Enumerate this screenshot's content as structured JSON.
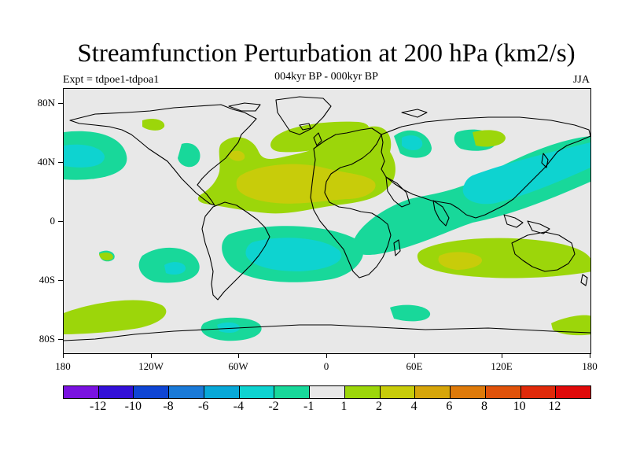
{
  "title": "Streamfunction Perturbation at 200 hPa (km2/s)",
  "subtitle": "004kyr BP - 000kyr BP",
  "experiment": "Expt = tdpoe1-tdpoa1",
  "season": "JJA",
  "y_axis_labels": [
    "80N",
    "40N",
    "0",
    "40S",
    "80S"
  ],
  "x_axis_labels": [
    "180",
    "120W",
    "60W",
    "0",
    "60E",
    "120E",
    "180"
  ],
  "colorbar": {
    "colors": [
      "#7a12e0",
      "#3310d8",
      "#0f45d4",
      "#1a7ad8",
      "#08a8d8",
      "#0ed3d0",
      "#18d89a",
      "#e8e8e8",
      "#9cd60a",
      "#c8cc0a",
      "#d6a50a",
      "#de7a0a",
      "#e0520a",
      "#e02a0a",
      "#e00a0a"
    ],
    "labels": [
      "-12",
      "-10",
      "-8",
      "-6",
      "-4",
      "-2",
      "-1",
      "1",
      "2",
      "4",
      "6",
      "8",
      "10",
      "12"
    ]
  },
  "palette": {
    "background": "#e8e8e8",
    "neg1": "#18d89a",
    "neg2": "#0ed3d0",
    "pos1": "#9cd60a",
    "pos2": "#c8cc0a"
  }
}
